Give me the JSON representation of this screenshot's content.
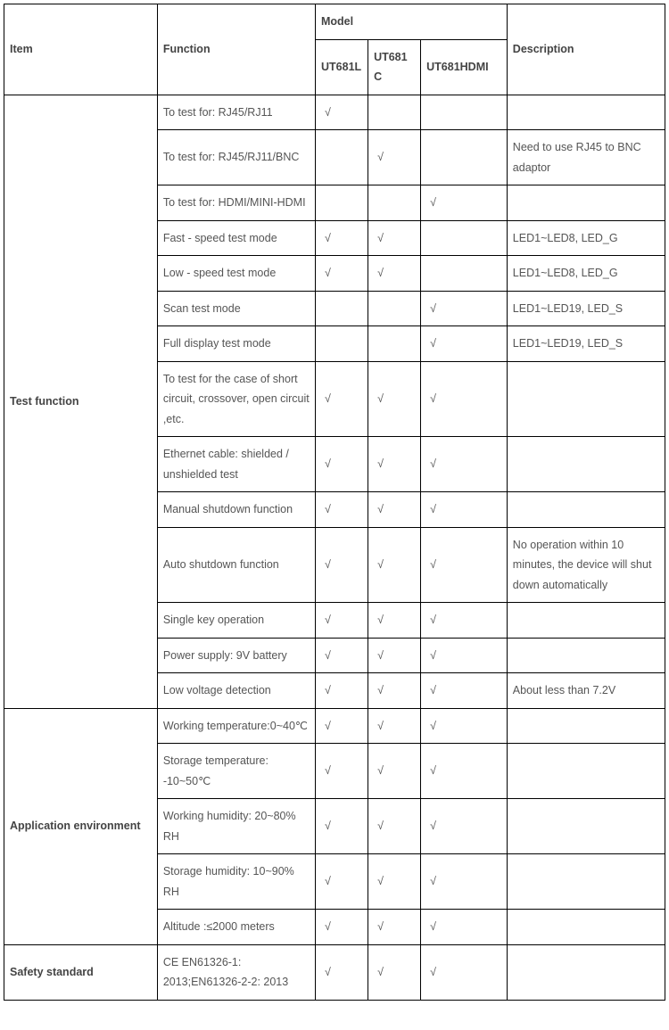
{
  "table": {
    "headers": {
      "item": "Item",
      "function": "Function",
      "model": "Model",
      "model1": "UT681L",
      "model2": "UT681C",
      "model3": "UT681HDMI",
      "description": "Description"
    },
    "checkmark": "√",
    "groups": [
      {
        "item": "Test function",
        "rows": [
          {
            "function": "To test for: RJ45/RJ11",
            "m1": true,
            "m2": false,
            "m3": false,
            "desc": ""
          },
          {
            "function": "To test for: RJ45/RJ11/BNC",
            "m1": false,
            "m2": true,
            "m3": false,
            "desc": " Need to use RJ45 to BNC adaptor"
          },
          {
            "function": "To test for: HDMI/MINI-HDMI",
            "m1": false,
            "m2": false,
            "m3": true,
            "desc": ""
          },
          {
            "function": "Fast - speed test mode",
            "m1": true,
            "m2": true,
            "m3": false,
            "desc": "LED1~LED8, LED_G"
          },
          {
            "function": "Low - speed test mode",
            "m1": true,
            "m2": true,
            "m3": false,
            "desc": "LED1~LED8, LED_G"
          },
          {
            "function": "Scan test mode",
            "m1": false,
            "m2": false,
            "m3": true,
            "desc": "LED1~LED19, LED_S"
          },
          {
            "function": "Full display test mode",
            "m1": false,
            "m2": false,
            "m3": true,
            "desc": "LED1~LED19, LED_S"
          },
          {
            "function": "To test for the case of short circuit,     crossover, open circuit ,etc.",
            "m1": true,
            "m2": true,
            "m3": true,
            "desc": ""
          },
          {
            "function": "Ethernet cable: shielded / unshielded test",
            "m1": true,
            "m2": true,
            "m3": true,
            "desc": ""
          },
          {
            "function": "Manual shutdown function",
            "m1": true,
            "m2": true,
            "m3": true,
            "desc": ""
          },
          {
            "function": "Auto shutdown function",
            "m1": true,
            "m2": true,
            "m3": true,
            "desc": "No operation within 10 minutes, the device will shut down automatically"
          },
          {
            "function": "Single key operation",
            "m1": true,
            "m2": true,
            "m3": true,
            "desc": ""
          },
          {
            "function": "Power supply: 9V battery",
            "m1": true,
            "m2": true,
            "m3": true,
            "desc": ""
          },
          {
            "function": " Low voltage detection",
            "m1": true,
            "m2": true,
            "m3": true,
            "desc": "About less than 7.2V"
          }
        ]
      },
      {
        "item": "Application environment",
        "rows": [
          {
            "function": "Working temperature:0~40℃",
            "m1": true,
            "m2": true,
            "m3": true,
            "desc": ""
          },
          {
            "function": "Storage temperature: -10~50℃",
            "m1": true,
            "m2": true,
            "m3": true,
            "desc": ""
          },
          {
            "function": "Working humidity: 20~80% RH",
            "m1": true,
            "m2": true,
            "m3": true,
            "desc": ""
          },
          {
            "function": "Storage humidity: 10~90% RH",
            "m1": true,
            "m2": true,
            "m3": true,
            "desc": ""
          },
          {
            "function": "Altitude :≤2000 meters",
            "m1": true,
            "m2": true,
            "m3": true,
            "desc": ""
          }
        ]
      },
      {
        "item": "Safety    standard",
        "rows": [
          {
            "function": "CE EN61326-1: 2013;EN61326-2-2: 2013",
            "m1": true,
            "m2": true,
            "m3": true,
            "desc": ""
          }
        ]
      }
    ]
  }
}
